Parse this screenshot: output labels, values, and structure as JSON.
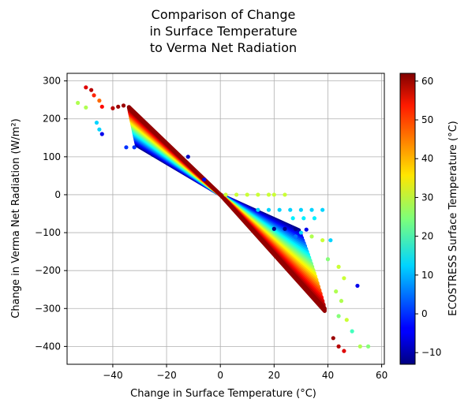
{
  "chart_data": {
    "type": "scatter",
    "title_lines": [
      "Comparison of Change",
      "in Surface Temperature",
      "to Verma Net Radiation"
    ],
    "xlabel": "Change in Surface Temperature (°C)",
    "ylabel": "Change in Verma Net Radiation (W/m²)",
    "colorbar_label": "ECOSTRESS Surface Temperature (°C)",
    "xlim": [
      -57,
      61
    ],
    "ylim": [
      -447,
      320
    ],
    "x_ticks": [
      -40,
      -20,
      0,
      20,
      40,
      60
    ],
    "x_tick_labels": [
      "−40",
      "−20",
      "0",
      "20",
      "40",
      "60"
    ],
    "y_ticks": [
      300,
      200,
      100,
      0,
      -100,
      -200,
      -300,
      -400
    ],
    "y_tick_labels": [
      "300",
      "200",
      "100",
      "0",
      "−100",
      "−200",
      "−300",
      "−400"
    ],
    "color_range": [
      -13,
      62
    ],
    "colorbar_ticks": [
      60,
      50,
      40,
      30,
      20,
      10,
      0,
      -10
    ],
    "colorbar_tick_labels": [
      "60",
      "50",
      "40",
      "30",
      "20",
      "10",
      "0",
      "−10"
    ],
    "colormap": "jet",
    "grid": true,
    "series": [
      {
        "points": [
          [
            -50,
            283,
            55
          ],
          [
            -48,
            276,
            58
          ],
          [
            -47,
            262,
            50
          ],
          [
            -45,
            248,
            45
          ],
          [
            -44,
            232,
            52
          ],
          [
            -53,
            242,
            28
          ],
          [
            -50,
            230,
            28
          ],
          [
            -46,
            190,
            12
          ],
          [
            -45,
            172,
            12
          ],
          [
            -44,
            160,
            -5
          ],
          [
            -40,
            228,
            58
          ],
          [
            -38,
            232,
            60
          ],
          [
            -36,
            235,
            60
          ],
          [
            -34,
            231,
            61
          ],
          [
            -35,
            125,
            0
          ],
          [
            -32,
            125,
            0
          ],
          [
            -12,
            100,
            -8
          ],
          [
            -6,
            40,
            -5
          ],
          [
            2,
            0,
            30
          ],
          [
            6,
            0,
            30
          ],
          [
            10,
            0,
            30
          ],
          [
            14,
            0,
            30
          ],
          [
            18,
            0,
            30
          ],
          [
            20,
            0,
            30
          ],
          [
            24,
            0,
            30
          ],
          [
            14,
            -40,
            12
          ],
          [
            18,
            -40,
            12
          ],
          [
            22,
            -40,
            12
          ],
          [
            26,
            -40,
            12
          ],
          [
            30,
            -40,
            12
          ],
          [
            34,
            -40,
            12
          ],
          [
            38,
            -40,
            12
          ],
          [
            27,
            -62,
            14
          ],
          [
            31,
            -62,
            14
          ],
          [
            35,
            -62,
            14
          ],
          [
            20,
            -90,
            -12
          ],
          [
            24,
            -90,
            -12
          ],
          [
            28,
            -90,
            -12
          ],
          [
            32,
            -92,
            -5
          ],
          [
            30,
            -100,
            12
          ],
          [
            28,
            -110,
            5
          ],
          [
            34,
            -110,
            28
          ],
          [
            38,
            -120,
            30
          ],
          [
            41,
            -120,
            12
          ],
          [
            40,
            -170,
            25
          ],
          [
            44,
            -190,
            30
          ],
          [
            46,
            -220,
            30
          ],
          [
            43,
            -255,
            28
          ],
          [
            45,
            -280,
            28
          ],
          [
            44,
            -320,
            25
          ],
          [
            47,
            -330,
            30
          ],
          [
            49,
            -360,
            20
          ],
          [
            51,
            -240,
            -5
          ],
          [
            52,
            -400,
            28
          ],
          [
            55,
            -400,
            25
          ],
          [
            46,
            -412,
            55
          ],
          [
            44,
            -400,
            58
          ],
          [
            42,
            -378,
            60
          ]
        ]
      }
    ]
  }
}
